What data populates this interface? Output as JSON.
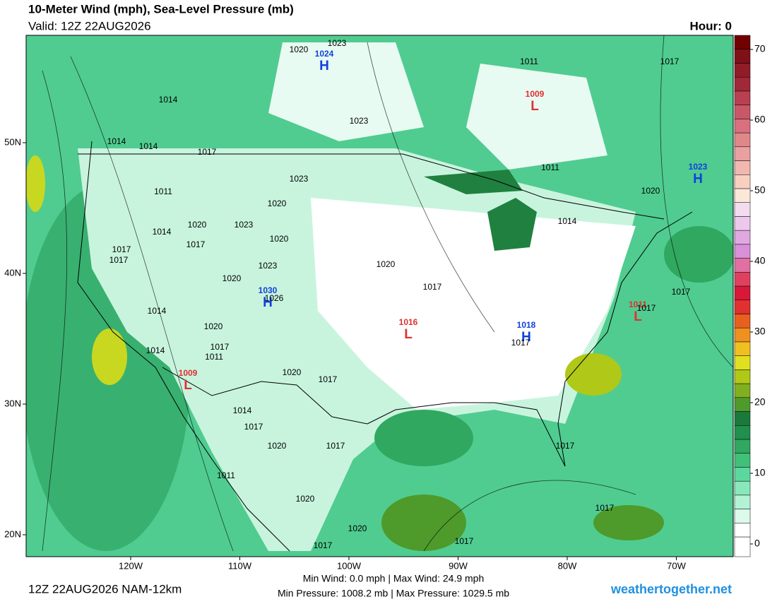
{
  "header": {
    "title": "10-Meter Wind (mph), Sea-Level Pressure (mb)",
    "valid": "Valid: 12Z 22AUG2026",
    "hour": "Hour: 0"
  },
  "colorbar": {
    "ticks": [
      0,
      10,
      20,
      30,
      40,
      50,
      60,
      70
    ],
    "colors": [
      "#ffffff",
      "#dcfaec",
      "#b4f2d6",
      "#88e8bc",
      "#5cd89e",
      "#40c078",
      "#30a860",
      "#20904c",
      "#1a7a3c",
      "#4e9a2a",
      "#80b020",
      "#b0c818",
      "#e0e020",
      "#f0c020",
      "#f09020",
      "#e86020",
      "#e03030",
      "#d81838",
      "#e04060",
      "#e070a0",
      "#d890d8",
      "#e0a8e0",
      "#ecc8ec",
      "#f4dcf0",
      "#fce8d8",
      "#f8d0c0",
      "#f0b8b0",
      "#e8a0a0",
      "#e08888",
      "#d87080",
      "#c85868",
      "#b84050",
      "#a02838",
      "#901c28",
      "#801018",
      "#700000"
    ]
  },
  "latitudes": [
    {
      "value": 50,
      "label": "50N"
    },
    {
      "value": 40,
      "label": "40N"
    },
    {
      "value": 30,
      "label": "30N"
    },
    {
      "value": 20,
      "label": "20N"
    }
  ],
  "longitudes": [
    {
      "value": 120,
      "label": "120W"
    },
    {
      "value": 110,
      "label": "110W"
    },
    {
      "value": 100,
      "label": "100W"
    },
    {
      "value": 90,
      "label": "90W"
    },
    {
      "value": 80,
      "label": "80W"
    },
    {
      "value": 70,
      "label": "70W"
    }
  ],
  "centers": [
    {
      "letter": "H",
      "value": 1024
    },
    {
      "letter": "H",
      "value": 1023
    },
    {
      "letter": "L",
      "value": 1009
    },
    {
      "letter": "H",
      "value": 1030
    },
    {
      "letter": "L",
      "value": 1016
    },
    {
      "letter": "H",
      "value": 1018
    },
    {
      "letter": "L",
      "value": 1011
    },
    {
      "letter": "L",
      "value": 1009
    }
  ],
  "isobars": [
    1020,
    1023,
    1011,
    1017,
    1014,
    1023,
    1014,
    1014,
    1017,
    1023,
    1011,
    1011,
    1020,
    1020,
    1014,
    1020,
    1023,
    1020,
    1014,
    1017,
    1017,
    1017,
    1020,
    1023,
    1020,
    1017,
    1026,
    1017,
    1017,
    1014,
    1020,
    1017,
    1011,
    1014,
    1017,
    1020,
    1017,
    1014,
    1017,
    1020,
    1017,
    1017,
    1011,
    1020,
    1017,
    1020,
    1017,
    1017
  ],
  "footer": {
    "run": "12Z 22AUG2026 NAM-12km",
    "wind": "Min Wind:   0.0 mph | Max Wind:  24.9 mph",
    "pressure": "Min Pressure: 1008.2 mb | Max Pressure: 1029.5 mb",
    "site": "weathertogether.net"
  }
}
